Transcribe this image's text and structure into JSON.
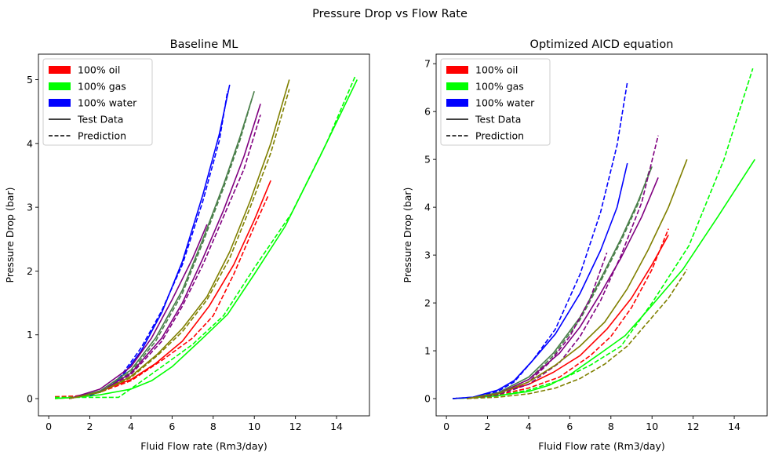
{
  "figure": {
    "suptitle": "Pressure Drop vs Flow Rate"
  },
  "legend": [
    {
      "label": "100% oil",
      "kind": "patch",
      "color": "#ff0000"
    },
    {
      "label": "100% gas",
      "kind": "patch",
      "color": "#00ff00"
    },
    {
      "label": "100% water",
      "kind": "patch",
      "color": "#0000ff"
    },
    {
      "label": "Test Data",
      "kind": "solid",
      "color": "#000000"
    },
    {
      "label": "Prediction",
      "kind": "dashed",
      "color": "#000000"
    }
  ],
  "chart_data": [
    {
      "type": "line",
      "title": "Baseline ML",
      "xlabel": "Fluid Flow rate (Rm3/day)",
      "ylabel": "Pressure Drop (bar)",
      "xlim": [
        -0.5,
        15.6
      ],
      "ylim": [
        -0.27,
        5.4
      ],
      "xticks": [
        0,
        2,
        4,
        6,
        8,
        10,
        12,
        14
      ],
      "yticks": [
        0,
        1,
        2,
        3,
        4,
        5
      ],
      "legend_position": "upper-left",
      "grid": false,
      "series": [
        {
          "color": "#ff0000",
          "style": "solid",
          "x": [
            0.3,
            1.3,
            2.5,
            4.0,
            5.2,
            6.5,
            7.8,
            9.0,
            10.0,
            10.8
          ],
          "y": [
            0.0,
            0.02,
            0.12,
            0.3,
            0.55,
            0.9,
            1.45,
            2.1,
            2.8,
            3.42
          ]
        },
        {
          "color": "#ff0000",
          "style": "dashed",
          "x": [
            0.3,
            1.3,
            2.5,
            4.0,
            5.5,
            7.0,
            8.0,
            9.0,
            10.0,
            10.7
          ],
          "y": [
            0.03,
            0.04,
            0.1,
            0.28,
            0.6,
            0.95,
            1.3,
            1.95,
            2.7,
            3.2
          ]
        },
        {
          "color": "#00ff00",
          "style": "solid",
          "x": [
            0.3,
            1.3,
            2.5,
            4.0,
            5.0,
            6.0,
            7.5,
            8.7,
            10.0,
            11.5,
            13.2,
            15.0
          ],
          "y": [
            0.0,
            0.02,
            0.06,
            0.15,
            0.28,
            0.5,
            0.95,
            1.32,
            1.95,
            2.7,
            3.8,
            5.0
          ]
        },
        {
          "color": "#00ff00",
          "style": "dashed",
          "x": [
            0.3,
            1.3,
            2.5,
            3.4,
            4.2,
            5.5,
            7.0,
            8.5,
            10.0,
            11.8,
            13.5,
            14.9
          ],
          "y": [
            0.02,
            0.02,
            0.02,
            0.02,
            0.2,
            0.5,
            0.85,
            1.3,
            2.05,
            2.9,
            4.0,
            5.05
          ]
        },
        {
          "color": "#0000ff",
          "style": "solid",
          "x": [
            2.0,
            2.8,
            3.5,
            4.5,
            5.5,
            6.5,
            7.5,
            8.3,
            8.8
          ],
          "y": [
            0.05,
            0.15,
            0.32,
            0.75,
            1.35,
            2.15,
            3.2,
            4.15,
            4.92
          ]
        },
        {
          "color": "#0000ff",
          "style": "dashed",
          "x": [
            2.0,
            2.8,
            3.5,
            4.5,
            5.5,
            6.5,
            7.5,
            8.3,
            8.7
          ],
          "y": [
            0.05,
            0.15,
            0.35,
            0.8,
            1.38,
            2.1,
            3.1,
            4.05,
            4.82
          ]
        },
        {
          "color": "#4a7f4a",
          "style": "solid",
          "x": [
            1.0,
            2.5,
            4.0,
            5.2,
            6.5,
            7.5,
            8.5,
            9.3,
            10.0
          ],
          "y": [
            0.0,
            0.12,
            0.45,
            0.95,
            1.7,
            2.5,
            3.35,
            4.1,
            4.82
          ]
        },
        {
          "color": "#4a7f4a",
          "style": "dashed",
          "x": [
            1.0,
            2.5,
            4.0,
            5.2,
            6.5,
            7.5,
            8.5,
            9.3,
            9.9
          ],
          "y": [
            0.0,
            0.1,
            0.42,
            0.9,
            1.65,
            2.45,
            3.3,
            4.05,
            4.72
          ]
        },
        {
          "color": "#800080",
          "style": "solid",
          "x": [
            1.0,
            2.5,
            4.0,
            5.0,
            6.0,
            7.0,
            7.7
          ],
          "y": [
            0.0,
            0.15,
            0.5,
            0.95,
            1.55,
            2.2,
            2.73
          ]
        },
        {
          "color": "#800080",
          "style": "solid",
          "x": [
            1.0,
            2.5,
            4.0,
            5.5,
            6.5,
            7.5,
            8.5,
            9.5,
            10.3
          ],
          "y": [
            0.0,
            0.1,
            0.4,
            0.95,
            1.5,
            2.2,
            2.95,
            3.8,
            4.62
          ]
        },
        {
          "color": "#800080",
          "style": "dashed",
          "x": [
            1.0,
            2.5,
            4.0,
            5.5,
            6.5,
            7.5,
            8.5,
            9.5,
            10.3
          ],
          "y": [
            0.0,
            0.1,
            0.38,
            0.9,
            1.45,
            2.1,
            2.85,
            3.6,
            4.45
          ]
        },
        {
          "color": "#808000",
          "style": "solid",
          "x": [
            1.0,
            2.5,
            4.0,
            5.3,
            6.5,
            7.7,
            8.8,
            9.8,
            10.8,
            11.7
          ],
          "y": [
            0.0,
            0.1,
            0.35,
            0.7,
            1.1,
            1.6,
            2.3,
            3.1,
            4.0,
            5.0
          ]
        },
        {
          "color": "#808000",
          "style": "dashed",
          "x": [
            1.0,
            2.5,
            4.0,
            5.3,
            6.5,
            7.7,
            8.8,
            9.8,
            10.8,
            11.7
          ],
          "y": [
            0.0,
            0.1,
            0.33,
            0.68,
            1.05,
            1.55,
            2.2,
            3.0,
            3.85,
            4.85
          ]
        }
      ]
    },
    {
      "type": "line",
      "title": "Optimized AICD equation",
      "xlabel": "Fluid Flow rate (Rm3/day)",
      "ylabel": "Pressure Drop (bar)",
      "xlim": [
        -0.5,
        15.6
      ],
      "ylim": [
        -0.36,
        7.2
      ],
      "xticks": [
        0,
        2,
        4,
        6,
        8,
        10,
        12,
        14
      ],
      "yticks": [
        0,
        1,
        2,
        3,
        4,
        5,
        6,
        7
      ],
      "legend_position": "upper-left",
      "grid": false,
      "series": [
        {
          "color": "#ff0000",
          "style": "solid",
          "x": [
            0.3,
            1.3,
            2.5,
            4.0,
            5.2,
            6.5,
            7.8,
            9.0,
            10.0,
            10.8
          ],
          "y": [
            0.0,
            0.02,
            0.12,
            0.3,
            0.55,
            0.9,
            1.45,
            2.1,
            2.8,
            3.42
          ]
        },
        {
          "color": "#ff0000",
          "style": "dashed",
          "x": [
            0.3,
            1.3,
            2.5,
            4.0,
            5.5,
            7.0,
            8.0,
            9.0,
            10.0,
            10.8
          ],
          "y": [
            0.0,
            0.02,
            0.08,
            0.22,
            0.45,
            0.9,
            1.3,
            1.9,
            2.7,
            3.55
          ]
        },
        {
          "color": "#00ff00",
          "style": "solid",
          "x": [
            0.3,
            1.3,
            2.5,
            4.0,
            5.0,
            6.0,
            7.5,
            8.7,
            10.0,
            11.5,
            13.2,
            15.0
          ],
          "y": [
            0.0,
            0.02,
            0.06,
            0.15,
            0.28,
            0.5,
            0.95,
            1.32,
            1.95,
            2.7,
            3.8,
            5.0
          ]
        },
        {
          "color": "#00ff00",
          "style": "dashed",
          "x": [
            0.3,
            1.3,
            2.5,
            4.0,
            5.5,
            7.0,
            8.5,
            10.0,
            11.8,
            13.5,
            14.9
          ],
          "y": [
            0.0,
            0.02,
            0.06,
            0.18,
            0.38,
            0.7,
            1.1,
            2.0,
            3.2,
            5.0,
            6.9
          ]
        },
        {
          "color": "#0000ff",
          "style": "solid",
          "x": [
            0.3,
            1.3,
            2.5,
            3.3,
            4.2,
            5.3,
            6.5,
            7.5,
            8.3,
            8.8
          ],
          "y": [
            0.0,
            0.03,
            0.18,
            0.38,
            0.8,
            1.35,
            2.2,
            3.1,
            4.0,
            4.92
          ]
        },
        {
          "color": "#0000ff",
          "style": "dashed",
          "x": [
            0.3,
            1.3,
            2.5,
            3.3,
            4.2,
            5.3,
            6.5,
            7.5,
            8.3,
            8.8
          ],
          "y": [
            0.0,
            0.03,
            0.15,
            0.35,
            0.8,
            1.45,
            2.6,
            3.9,
            5.3,
            6.62
          ]
        },
        {
          "color": "#4a7f4a",
          "style": "solid",
          "x": [
            1.0,
            2.5,
            4.0,
            5.2,
            6.5,
            7.5,
            8.5,
            9.3,
            10.0
          ],
          "y": [
            0.0,
            0.12,
            0.45,
            0.95,
            1.7,
            2.5,
            3.35,
            4.1,
            4.85
          ]
        },
        {
          "color": "#4a7f4a",
          "style": "dashed",
          "x": [
            1.0,
            2.5,
            4.0,
            5.2,
            6.5,
            7.5,
            8.5,
            9.3,
            9.9
          ],
          "y": [
            0.0,
            0.1,
            0.4,
            0.9,
            1.65,
            2.45,
            3.3,
            4.05,
            4.8
          ]
        },
        {
          "color": "#800080",
          "style": "solid",
          "x": [
            1.0,
            2.5,
            4.0,
            5.5,
            6.5,
            7.5,
            8.5,
            9.5,
            10.3
          ],
          "y": [
            0.0,
            0.1,
            0.4,
            0.95,
            1.5,
            2.2,
            2.95,
            3.8,
            4.62
          ]
        },
        {
          "color": "#800080",
          "style": "dashed",
          "x": [
            1.0,
            2.5,
            4.0,
            5.5,
            6.5,
            7.5,
            8.5,
            9.5,
            10.3
          ],
          "y": [
            0.0,
            0.08,
            0.3,
            0.75,
            1.3,
            2.05,
            3.0,
            4.1,
            5.5
          ]
        },
        {
          "color": "#800080",
          "style": "dashed",
          "x": [
            1.0,
            2.5,
            4.0,
            5.0,
            6.0,
            7.0,
            7.8
          ],
          "y": [
            0.0,
            0.08,
            0.35,
            0.75,
            1.3,
            2.1,
            3.05
          ]
        },
        {
          "color": "#808000",
          "style": "solid",
          "x": [
            1.0,
            2.5,
            4.0,
            5.3,
            6.5,
            7.7,
            8.8,
            9.8,
            10.8,
            11.7
          ],
          "y": [
            0.0,
            0.1,
            0.35,
            0.7,
            1.1,
            1.6,
            2.3,
            3.1,
            4.0,
            5.0
          ]
        },
        {
          "color": "#808000",
          "style": "dashed",
          "x": [
            1.0,
            2.5,
            4.0,
            5.3,
            6.5,
            7.7,
            8.8,
            9.8,
            10.8,
            11.7
          ],
          "y": [
            0.0,
            0.03,
            0.1,
            0.22,
            0.42,
            0.72,
            1.1,
            1.6,
            2.1,
            2.7
          ]
        }
      ]
    }
  ]
}
